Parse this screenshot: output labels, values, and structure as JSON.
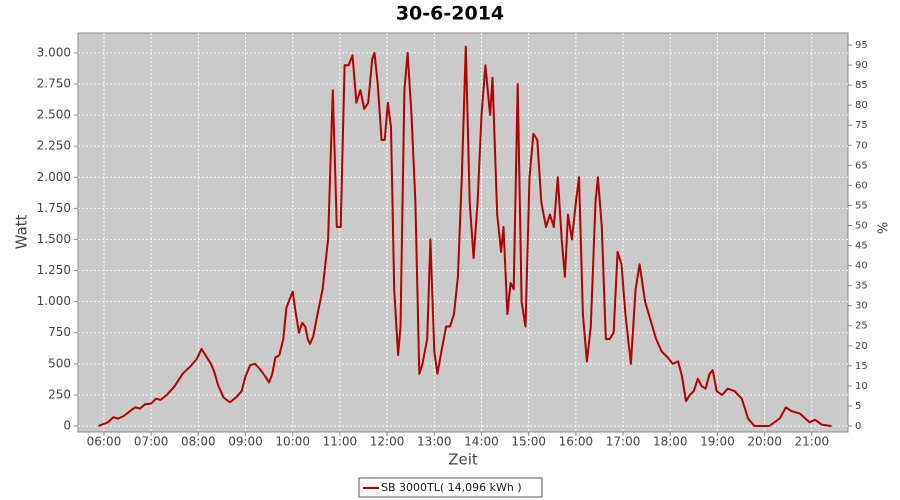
{
  "chart_data": {
    "type": "line",
    "title": "30-6-2014",
    "x_label": "Zeit",
    "y_label": "Watt",
    "y2_label": "%",
    "grid": true,
    "legend": "bottom",
    "xlim": [
      327,
      1306
    ],
    "ylim": [
      -48,
      3160
    ],
    "y2lim": [
      -1.5,
      98
    ],
    "xticks": [
      {
        "value": 360,
        "label": "06:00"
      },
      {
        "value": 420,
        "label": "07:00"
      },
      {
        "value": 480,
        "label": "08:00"
      },
      {
        "value": 540,
        "label": "09:00"
      },
      {
        "value": 600,
        "label": "10:00"
      },
      {
        "value": 660,
        "label": "11:00"
      },
      {
        "value": 720,
        "label": "12:00"
      },
      {
        "value": 780,
        "label": "13:00"
      },
      {
        "value": 840,
        "label": "14:00"
      },
      {
        "value": 900,
        "label": "15:00"
      },
      {
        "value": 960,
        "label": "16:00"
      },
      {
        "value": 1020,
        "label": "17:00"
      },
      {
        "value": 1080,
        "label": "18:00"
      },
      {
        "value": 1140,
        "label": "19:00"
      },
      {
        "value": 1200,
        "label": "20:00"
      },
      {
        "value": 1260,
        "label": "21:00"
      }
    ],
    "yticks": [
      0,
      250,
      500,
      750,
      {
        "value": 1000,
        "label": "1.000"
      },
      {
        "value": 1250,
        "label": "1.250"
      },
      {
        "value": 1500,
        "label": "1.500"
      },
      {
        "value": 1750,
        "label": "1.750"
      },
      {
        "value": 2000,
        "label": "2.000"
      },
      {
        "value": 2250,
        "label": "2.250"
      },
      {
        "value": 2500,
        "label": "2.500"
      },
      {
        "value": 2750,
        "label": "2.750"
      },
      {
        "value": 3000,
        "label": "3.000"
      }
    ],
    "y2ticks": [
      0,
      5,
      10,
      15,
      20,
      25,
      30,
      35,
      40,
      45,
      50,
      55,
      60,
      65,
      70,
      75,
      80,
      85,
      90,
      95
    ],
    "x": [
      353,
      365,
      372,
      378,
      385,
      395,
      400,
      406,
      412,
      420,
      426,
      432,
      440,
      450,
      460,
      470,
      478,
      484,
      490,
      496,
      500,
      505,
      512,
      520,
      528,
      535,
      540,
      546,
      552,
      558,
      565,
      570,
      574,
      578,
      583,
      588,
      592,
      598,
      600,
      604,
      608,
      612,
      616,
      619,
      622,
      626,
      630,
      638,
      645,
      651,
      656,
      661,
      666,
      671,
      676,
      681,
      686,
      691,
      696,
      701,
      704,
      708,
      713,
      717,
      721,
      725,
      729,
      734,
      737,
      742,
      746,
      751,
      756,
      761,
      765,
      771,
      775,
      780,
      784,
      789,
      795,
      800,
      805,
      810,
      815,
      820,
      825,
      830,
      835,
      840,
      845,
      851,
      854,
      860,
      865,
      868,
      873,
      877,
      881,
      886,
      891,
      896,
      901,
      906,
      911,
      916,
      922,
      927,
      932,
      937,
      942,
      946,
      950,
      955,
      960,
      964,
      969,
      974,
      979,
      985,
      988,
      993,
      998,
      1003,
      1008,
      1013,
      1018,
      1023,
      1030,
      1036,
      1041,
      1048,
      1055,
      1062,
      1069,
      1077,
      1083,
      1090,
      1095,
      1100,
      1105,
      1110,
      1115,
      1120,
      1125,
      1130,
      1134,
      1139,
      1146,
      1153,
      1162,
      1171,
      1179,
      1187,
      1206,
      1219,
      1227,
      1234,
      1245,
      1252,
      1257,
      1264,
      1273,
      1285
    ],
    "series": [
      {
        "name": "SB 3000TL( 14,096 kWh )",
        "color": "#b00000",
        "values": [
          0,
          30,
          70,
          60,
          80,
          130,
          150,
          140,
          175,
          180,
          220,
          210,
          250,
          320,
          420,
          480,
          540,
          620,
          560,
          500,
          440,
          330,
          230,
          190,
          230,
          280,
          400,
          490,
          500,
          460,
          400,
          350,
          420,
          550,
          570,
          700,
          950,
          1050,
          1080,
          900,
          750,
          830,
          800,
          700,
          660,
          720,
          850,
          1100,
          1500,
          2700,
          1600,
          1600,
          2900,
          2900,
          2980,
          2600,
          2700,
          2550,
          2600,
          2950,
          3000,
          2750,
          2300,
          2300,
          2600,
          2400,
          1100,
          570,
          800,
          2700,
          3000,
          2500,
          1800,
          420,
          500,
          700,
          1500,
          600,
          420,
          600,
          800,
          800,
          900,
          1200,
          2000,
          3050,
          1800,
          1350,
          1800,
          2500,
          2900,
          2500,
          2800,
          1700,
          1400,
          1600,
          900,
          1150,
          1100,
          2750,
          1000,
          800,
          2000,
          2350,
          2300,
          1800,
          1600,
          1700,
          1600,
          2000,
          1500,
          1200,
          1700,
          1500,
          1800,
          2000,
          900,
          520,
          800,
          1800,
          2000,
          1600,
          700,
          700,
          750,
          1400,
          1300,
          900,
          500,
          1100,
          1300,
          1000,
          850,
          700,
          600,
          550,
          500,
          520,
          400,
          200,
          250,
          280,
          380,
          320,
          300,
          420,
          450,
          280,
          250,
          300,
          280,
          220,
          60,
          0,
          0,
          60,
          150,
          120,
          100,
          60,
          30,
          50,
          10,
          0
        ]
      }
    ]
  }
}
